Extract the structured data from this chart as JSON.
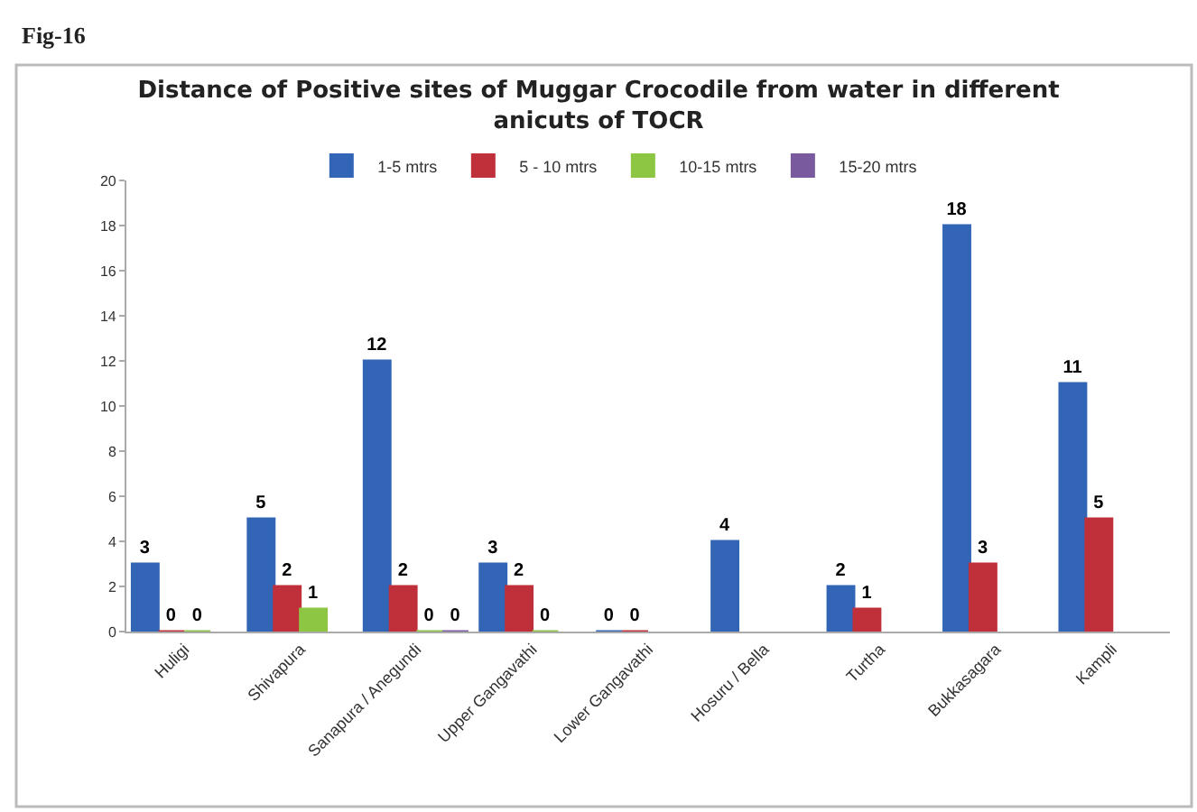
{
  "chart_data": {
    "type": "bar",
    "title": "Distance of Positive sites of Muggar Crocodile from water in different\nanicuts of TOCR",
    "annotations": [
      "Fig-16"
    ],
    "categories": [
      "Huligi",
      "Shivapura",
      "Sanapura / Anegundi",
      "Upper Gangavathi",
      "Lower Gangavathi",
      "Hosuru / Bella",
      "Turtha",
      "Bukkasagara",
      "Kampli"
    ],
    "series": [
      {
        "name": "1-5 mtrs",
        "color": "#3265b5",
        "values": [
          3,
          5,
          12,
          3,
          0,
          4,
          2,
          18,
          11
        ],
        "value_labels": [
          "3",
          "5",
          "12",
          "3",
          "0",
          "4",
          "2",
          "18",
          "11"
        ]
      },
      {
        "name": "5 - 10 mtrs",
        "color": "#c0303a",
        "values": [
          0,
          2,
          2,
          2,
          0,
          null,
          1,
          3,
          5
        ],
        "value_labels": [
          "0",
          "2",
          "2",
          "2",
          "0",
          null,
          "1",
          "3",
          "5"
        ]
      },
      {
        "name": "10-15 mtrs",
        "color": "#8dc642",
        "values": [
          0,
          1,
          0,
          0,
          null,
          null,
          null,
          null,
          null
        ],
        "value_labels": [
          "0",
          "1",
          "0",
          "0",
          null,
          null,
          null,
          null,
          null
        ]
      },
      {
        "name": "15-20 mtrs",
        "color": "#7a5a9e",
        "values": [
          null,
          null,
          0,
          null,
          null,
          null,
          null,
          null,
          null
        ],
        "value_labels": [
          null,
          null,
          "0",
          null,
          null,
          null,
          null,
          null,
          null
        ]
      }
    ],
    "ylim": [
      0,
      20
    ],
    "yticks": [
      0,
      2,
      4,
      6,
      8,
      10,
      12,
      14,
      16,
      18,
      20
    ],
    "legend": "top"
  }
}
